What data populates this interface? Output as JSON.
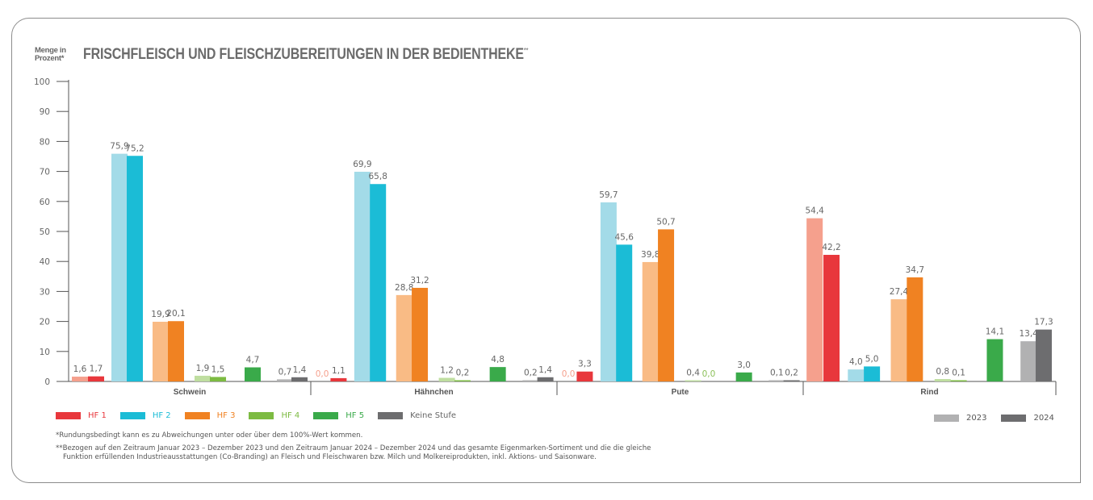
{
  "chart_data": {
    "type": "bar",
    "title": "FRISCHFLEISCH UND FLEISCHZUBEREITUNGEN IN DER BEDIENTHEKE",
    "title_suffix": "**",
    "ylabel_line1": "Menge in",
    "ylabel_line2": "Prozent*",
    "xlabel": "",
    "ylim": [
      0,
      100
    ],
    "yticks": [
      0,
      10,
      20,
      30,
      40,
      50,
      60,
      70,
      80,
      90,
      100
    ],
    "grid": false,
    "categories": [
      "Schwein",
      "Hähnchen",
      "Pute",
      "Rind"
    ],
    "years": [
      "2023",
      "2024"
    ],
    "series": [
      {
        "name": "HF 1",
        "color_2024": "#e8373c",
        "color_2023": "#f5a08d",
        "values_2023": [
          1.6,
          0.0,
          0.0,
          54.4
        ],
        "values_2024": [
          1.7,
          1.1,
          3.3,
          42.2
        ],
        "labels_2023": [
          "1,6",
          "0,0",
          "0,0",
          "54,4"
        ],
        "labels_2024": [
          "1,7",
          "1,1",
          "3,3",
          "42,2"
        ]
      },
      {
        "name": "HF 2",
        "color_2024": "#1bbcd6",
        "color_2023": "#a3dbe8",
        "values_2023": [
          75.9,
          69.9,
          59.7,
          4.0
        ],
        "values_2024": [
          75.2,
          65.8,
          45.6,
          5.0
        ],
        "labels_2023": [
          "75,9",
          "69,9",
          "59,7",
          "4,0"
        ],
        "labels_2024": [
          "75,2",
          "65,8",
          "45,6",
          "5,0"
        ]
      },
      {
        "name": "HF 3",
        "color_2024": "#f08222",
        "color_2023": "#f9bb85",
        "values_2023": [
          19.9,
          28.8,
          39.8,
          27.4
        ],
        "values_2024": [
          20.1,
          31.2,
          50.7,
          34.7
        ],
        "labels_2023": [
          "19,9",
          "28,8",
          "39,8",
          "27,4"
        ],
        "labels_2024": [
          "20,1",
          "31,2",
          "50,7",
          "34,7"
        ]
      },
      {
        "name": "HF 4",
        "color_2024": "#7dbb42",
        "color_2023": "#bfdea0",
        "values_2023": [
          1.9,
          1.2,
          0.4,
          0.8
        ],
        "values_2024": [
          1.5,
          0.2,
          0.0,
          0.1
        ],
        "labels_2023": [
          "1,9",
          "1,2",
          "0,4",
          "0,8"
        ],
        "labels_2024": [
          "1,5",
          "0,2",
          "0,0",
          "0,1"
        ]
      },
      {
        "name": "HF 5",
        "color_2024": "#3aaa4a",
        "color_2023": null,
        "values_2023": null,
        "values_2024": [
          4.7,
          4.8,
          3.0,
          14.1
        ],
        "labels_2023": null,
        "labels_2024": [
          "4,7",
          "4,8",
          "3,0",
          "14,1"
        ]
      },
      {
        "name": "Keine Stufe",
        "color_2024": "#6d6d6f",
        "color_2023": "#b1b1b2",
        "values_2023": [
          0.7,
          0.2,
          0.1,
          13.4
        ],
        "values_2024": [
          1.4,
          1.4,
          0.2,
          17.3
        ],
        "labels_2023": [
          "0,7",
          "0,2",
          "0,1",
          "13,4"
        ],
        "labels_2024": [
          "1,4",
          "1,4",
          "0,2",
          "17,3"
        ]
      }
    ],
    "zero_label_colors": {
      "HF 1": "#f5a08d",
      "HF 4": "#8cc05a"
    },
    "legend_position": "bottom-left",
    "year_legend_position": "bottom-right"
  },
  "legend": {
    "items": [
      {
        "label": "HF 1",
        "color": "#e8373c",
        "text_color": "#e8373c"
      },
      {
        "label": "HF 2",
        "color": "#1bbcd6",
        "text_color": "#1bbcd6"
      },
      {
        "label": "HF 3",
        "color": "#f08222",
        "text_color": "#f08222"
      },
      {
        "label": "HF 4",
        "color": "#7dbb42",
        "text_color": "#7dbb42"
      },
      {
        "label": "HF 5",
        "color": "#3aaa4a",
        "text_color": "#3aaa4a"
      },
      {
        "label": "Keine Stufe",
        "color": "#6d6d6f",
        "text_color": "#666666"
      }
    ],
    "years": [
      {
        "label": "2023",
        "color": "#b1b1b2"
      },
      {
        "label": "2024",
        "color": "#6d6d6f"
      }
    ]
  },
  "footnotes": {
    "note1": "*Rundungsbedingt kann es zu Abweichungen unter oder über dem 100%-Wert kommen.",
    "note2_line1": "**Bezogen auf den Zeitraum Januar 2023 – Dezember 2023 und den Zeitraum Januar 2024 – Dezember 2024 und das gesamte Eigenmarken-Sortiment und die die gleiche",
    "note2_line2": "Funktion erfüllenden Industrieausstattungen (Co-Branding) an Fleisch und Fleischwaren bzw. Milch und Molkereiprodukten, inkl. Aktions- und Saisonware."
  }
}
